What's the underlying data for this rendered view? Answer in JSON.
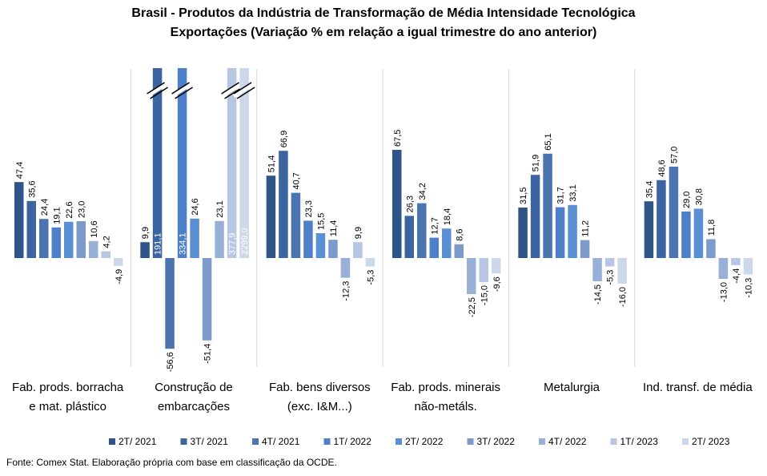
{
  "title": "Brasil - Produtos da Indústria de Transformação de Média Intensidade Tecnológica",
  "subtitle": "Exportações (Variação % em relação a igual trimestre do ano anterior)",
  "source": "Fonte: Comex Stat. Elaboração própria com base em classificação da OCDE.",
  "chart_data": {
    "type": "bar",
    "legend_position": "bottom",
    "grid": false,
    "axis_break": true,
    "series_names": [
      "2T/ 2021",
      "3T/ 2021",
      "4T/ 2021",
      "1T/ 2022",
      "2T/ 2022",
      "3T/ 2022",
      "4T/ 2022",
      "1T/ 2023",
      "2T/ 2023"
    ],
    "series_colors": [
      "#2e5488",
      "#3b64a0",
      "#4c74b0",
      "#4d80c8",
      "#5b8fd4",
      "#7c9bcb",
      "#98b0d8",
      "#b6c6e3",
      "#ccd7ea"
    ],
    "groups": [
      {
        "label": [
          "Fab. prods. borracha",
          "e mat. plástico"
        ],
        "values": [
          47.4,
          35.6,
          24.4,
          19.1,
          22.6,
          23.0,
          10.6,
          4.2,
          -4.9
        ],
        "labels": [
          "47,4",
          "35,6",
          "24,4",
          "19,1",
          "22,6",
          "23,0",
          "10,6",
          "4,2",
          "-4,9"
        ]
      },
      {
        "label": [
          "Construção de",
          "embarcações"
        ],
        "values": [
          9.9,
          191.1,
          -56.6,
          334.1,
          24.6,
          -51.4,
          23.1,
          377.9,
          2299.0
        ],
        "labels": [
          "9,9",
          "191,1",
          "-56,6",
          "334,1",
          "24,6",
          "-51,4",
          "23,1",
          "377,9",
          "2299,0"
        ]
      },
      {
        "label": [
          "Fab. bens diversos",
          "(exc. I&M...)"
        ],
        "values": [
          51.4,
          66.9,
          40.7,
          23.3,
          15.5,
          11.4,
          -12.3,
          9.9,
          -5.3
        ],
        "labels": [
          "51,4",
          "66,9",
          "40,7",
          "23,3",
          "15,5",
          "11,4",
          "-12,3",
          "9,9",
          "-5,3"
        ]
      },
      {
        "label": [
          "Fab. prods. minerais",
          "não-metáls."
        ],
        "values": [
          67.5,
          26.3,
          34.2,
          12.7,
          18.4,
          8.6,
          -22.5,
          -15.0,
          -9.6
        ],
        "labels": [
          "67,5",
          "26,3",
          "34,2",
          "12,7",
          "18,4",
          "8,6",
          "-22,5",
          "-15,0",
          "-9,6"
        ]
      },
      {
        "label": [
          "Metalurgia"
        ],
        "values": [
          31.5,
          51.9,
          65.1,
          31.7,
          33.1,
          11.2,
          -14.5,
          -5.3,
          -16.0
        ],
        "labels": [
          "31,5",
          "51,9",
          "65,1",
          "31,7",
          "33,1",
          "11,2",
          "-14,5",
          "-5,3",
          "-16,0"
        ]
      },
      {
        "label": [
          "Ind. transf. de média"
        ],
        "values": [
          35.4,
          48.6,
          57.0,
          29.0,
          30.8,
          11.8,
          -13.0,
          -4.4,
          -10.3
        ],
        "labels": [
          "35,4",
          "48,6",
          "57,0",
          "29,0",
          "30,8",
          "11,8",
          "-13,0",
          "-4,4",
          "-10,3"
        ]
      }
    ]
  }
}
